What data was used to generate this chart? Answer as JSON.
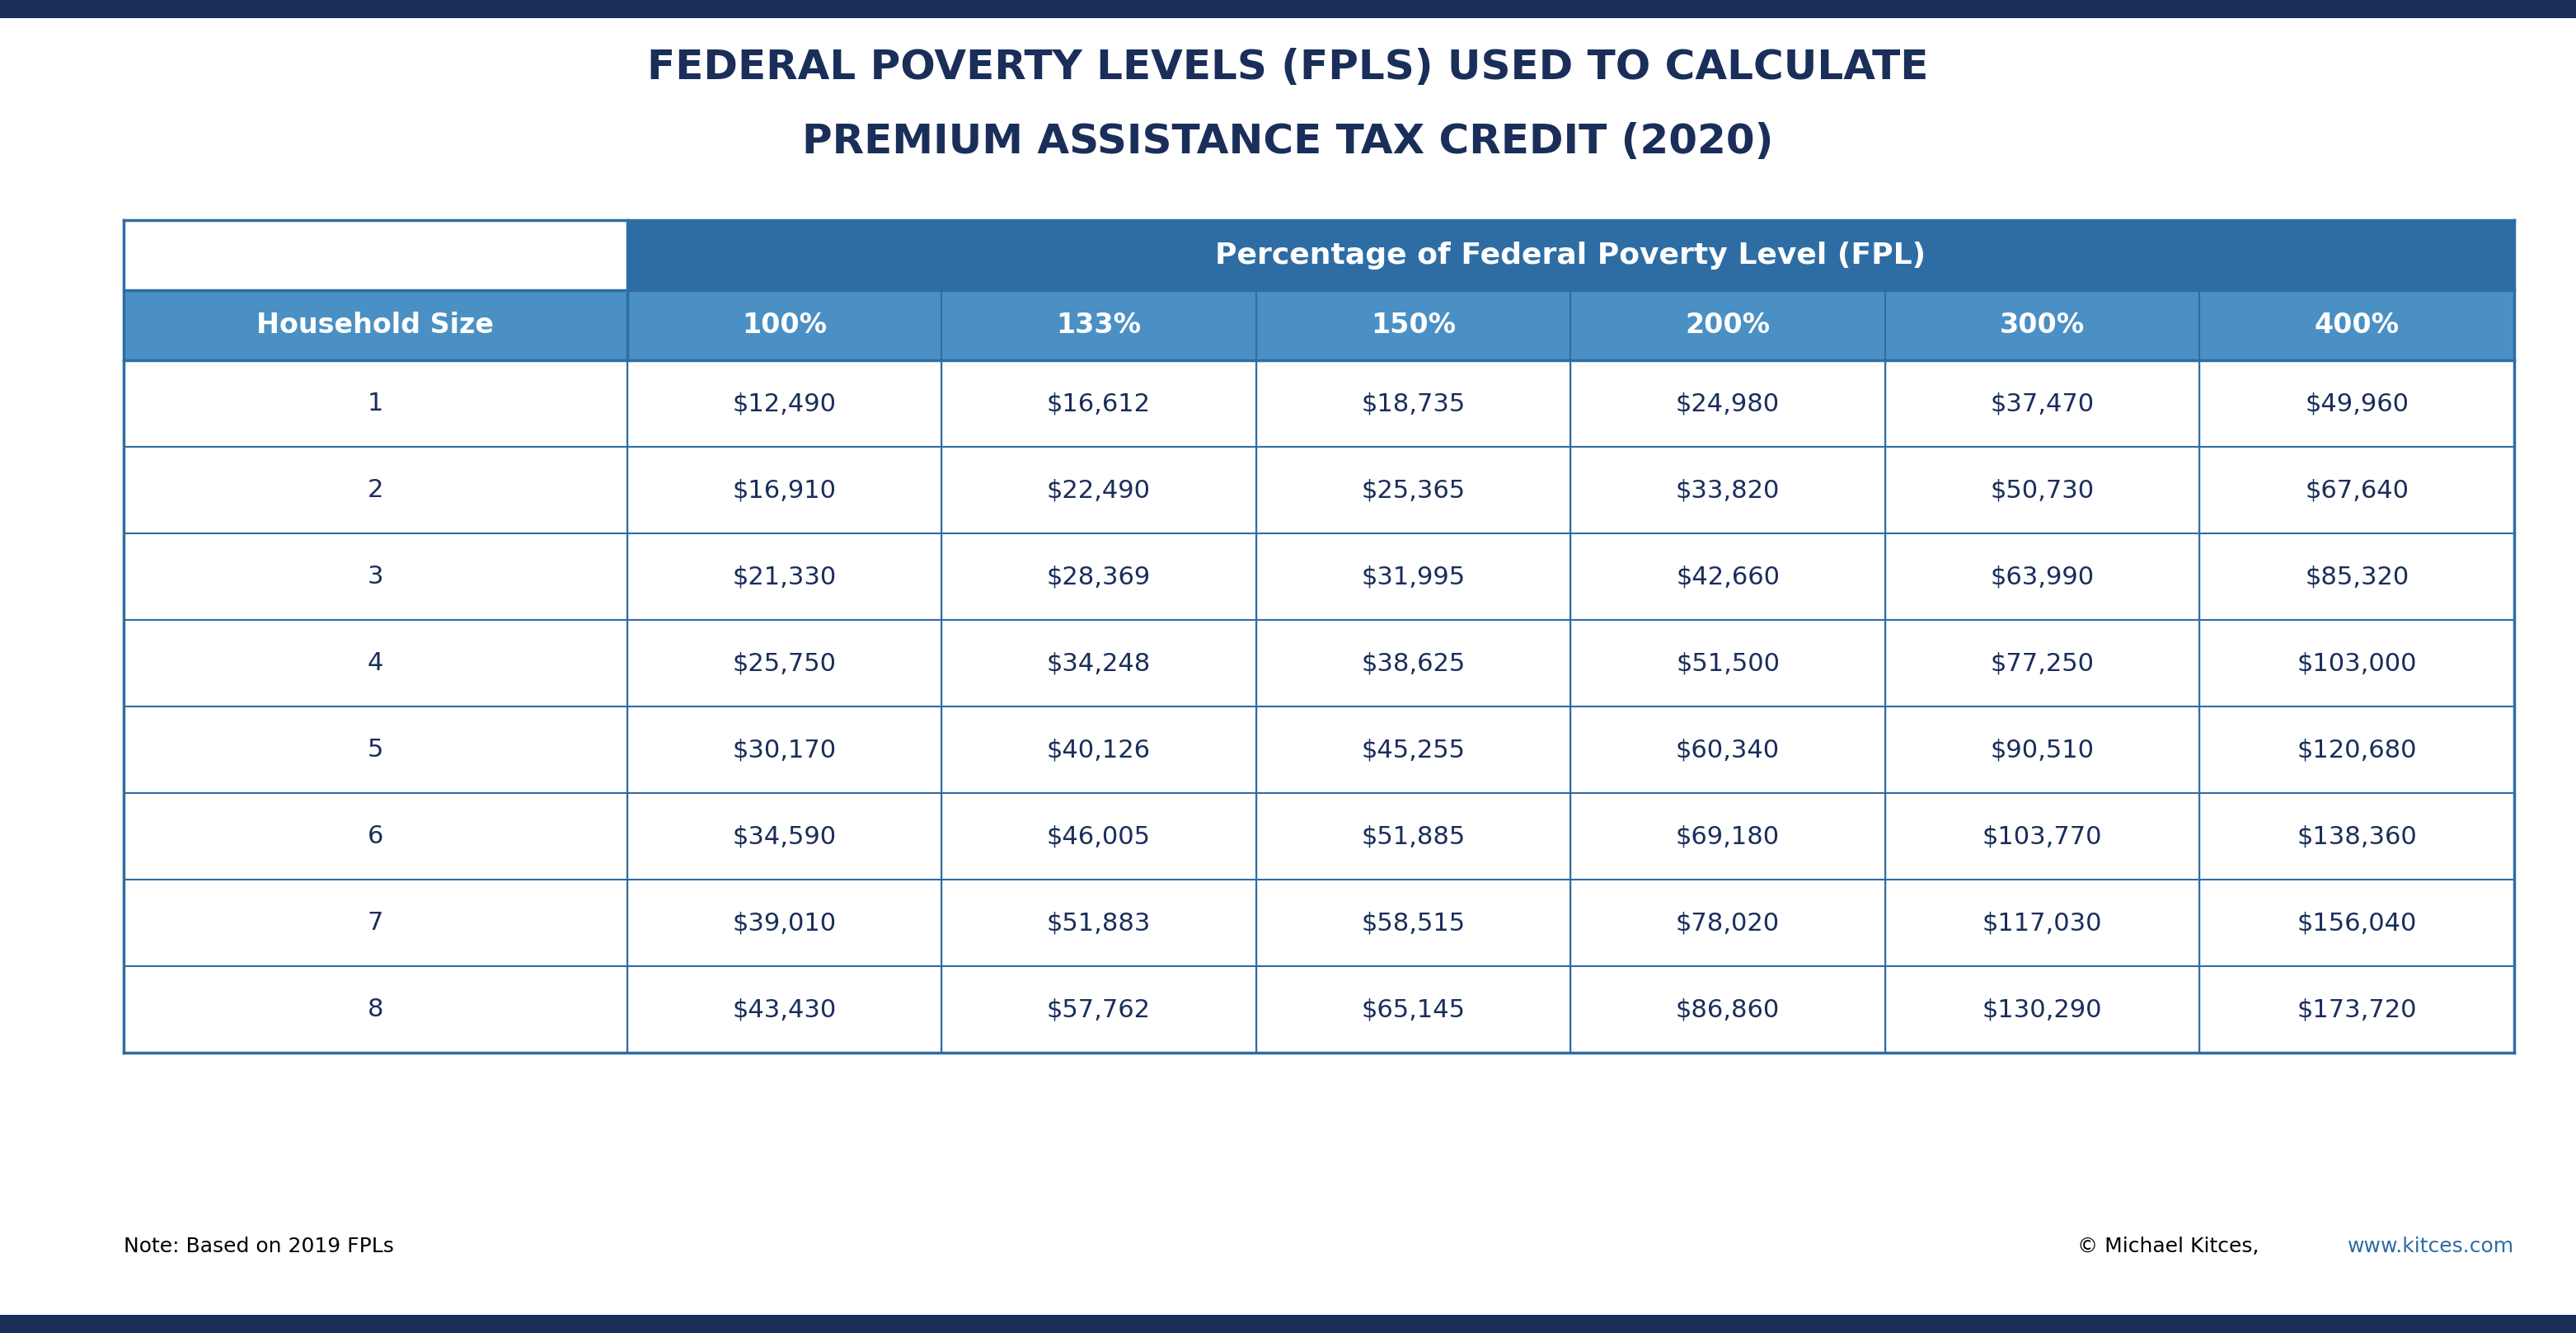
{
  "title_line1": "FEDERAL POVERTY LEVELS (FPLS) USED TO CALCULATE",
  "title_line2": "PREMIUM ASSISTANCE TAX CREDIT (2020)",
  "title_color": "#1a2e5a",
  "title_fontsize": 36,
  "bg_color": "#ffffff",
  "top_bar_color": "#1a2e5a",
  "header_row1_color": "#2e6da4",
  "header_row2_color": "#4a90c4",
  "header_text_color": "#ffffff",
  "data_bg_color": "#ffffff",
  "row_line_color": "#2e6da4",
  "data_text_color": "#1a2e5a",
  "col_header": [
    "Household Size",
    "100%",
    "133%",
    "150%",
    "200%",
    "300%",
    "400%"
  ],
  "span_header": "Percentage of Federal Poverty Level (FPL)",
  "rows": [
    [
      "1",
      "$12,490",
      "$16,612",
      "$18,735",
      "$24,980",
      "$37,470",
      "$49,960"
    ],
    [
      "2",
      "$16,910",
      "$22,490",
      "$25,365",
      "$33,820",
      "$50,730",
      "$67,640"
    ],
    [
      "3",
      "$21,330",
      "$28,369",
      "$31,995",
      "$42,660",
      "$63,990",
      "$85,320"
    ],
    [
      "4",
      "$25,750",
      "$34,248",
      "$38,625",
      "$51,500",
      "$77,250",
      "$103,000"
    ],
    [
      "5",
      "$30,170",
      "$40,126",
      "$45,255",
      "$60,340",
      "$90,510",
      "$120,680"
    ],
    [
      "6",
      "$34,590",
      "$46,005",
      "$51,885",
      "$69,180",
      "$103,770",
      "$138,360"
    ],
    [
      "7",
      "$39,010",
      "$51,883",
      "$58,515",
      "$78,020",
      "$117,030",
      "$156,040"
    ],
    [
      "8",
      "$43,430",
      "$57,762",
      "$65,145",
      "$86,860",
      "$130,290",
      "$173,720"
    ]
  ],
  "note_left": "Note: Based on 2019 FPLs",
  "note_right_plain": "© Michael Kitces, ",
  "note_right_link": "www.kitces.com",
  "note_fontsize": 18,
  "link_color": "#2e6da4"
}
